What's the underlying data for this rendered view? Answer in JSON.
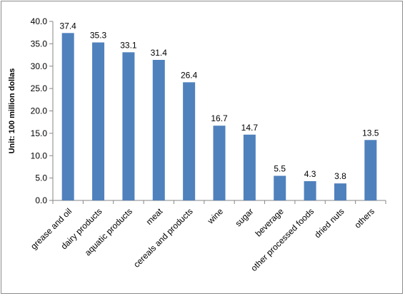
{
  "chart_data": {
    "type": "bar",
    "title": "",
    "xlabel": "",
    "ylabel": "Unit: 100 million dollas",
    "ylim": [
      0,
      40
    ],
    "y_ticks": [
      "0.0",
      "5.0",
      "10.0",
      "15.0",
      "20.0",
      "25.0",
      "30.0",
      "35.0",
      "40.0"
    ],
    "y_tick_values": [
      0,
      5,
      10,
      15,
      20,
      25,
      30,
      35,
      40
    ],
    "categories": [
      "grease and oil",
      "dairy products",
      "aquatic products",
      "meat",
      "cereals and products",
      "wine",
      "sugar",
      "beverage",
      "other processed foods",
      "dried nuts",
      "others"
    ],
    "values": [
      37.4,
      35.3,
      33.1,
      31.4,
      26.4,
      16.7,
      14.7,
      5.5,
      4.3,
      3.8,
      13.5
    ],
    "data_labels": [
      "37.4",
      "35.3",
      "33.1",
      "31.4",
      "26.4",
      "16.7",
      "14.7",
      "5.5",
      "4.3",
      "3.8",
      "13.5"
    ],
    "bar_color": "#4F81BD",
    "grid": false,
    "legend": "none"
  }
}
